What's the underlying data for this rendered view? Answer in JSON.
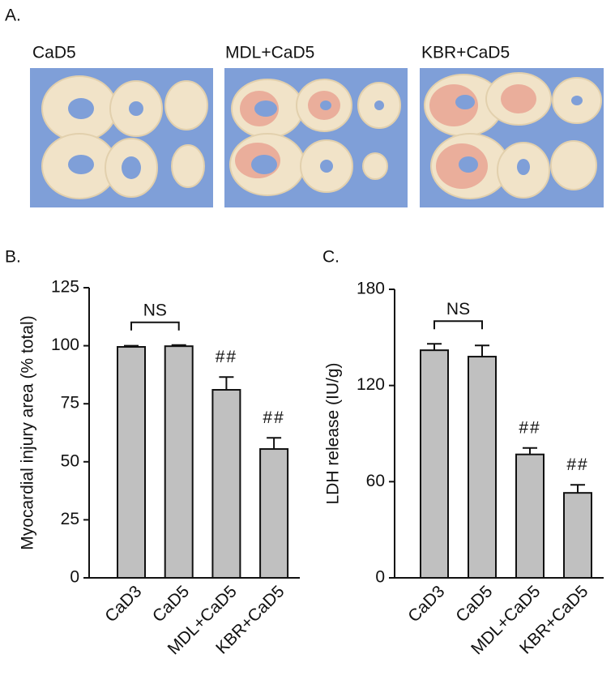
{
  "figure": {
    "panel_labels": [
      "A.",
      "B.",
      "C."
    ],
    "photo_captions": [
      "CaD5",
      "MDL+CaD5",
      "KBR+CaD5"
    ]
  },
  "chart_data": [
    {
      "type": "bar",
      "y_label": "Myocardial injury area (% total)",
      "categories": [
        "CaD3",
        "CaD5",
        "MDL+CaD5",
        "KBR+CaD5"
      ],
      "values": [
        99.5,
        99.8,
        81,
        55.5
      ],
      "errors": [
        0.5,
        0.5,
        5.5,
        4.8
      ],
      "bracket_label": "NS",
      "bar_labels": [
        null,
        null,
        "##",
        "##"
      ],
      "color": "#c0c0c0",
      "ylim": [
        0,
        125
      ],
      "yticks": [
        0,
        25,
        50,
        75,
        100,
        125
      ]
    },
    {
      "type": "bar",
      "y_label": "LDH release (IU/g)",
      "categories": [
        "CaD3",
        "CaD5",
        "MDL+CaD5",
        "KBR+CaD5"
      ],
      "values": [
        142,
        138,
        77,
        53
      ],
      "errors": [
        4,
        7,
        4,
        5
      ],
      "bracket_label": "NS",
      "bar_labels": [
        null,
        null,
        "##",
        "##"
      ],
      "color": "#c0c0c0",
      "ylim": [
        0,
        180
      ],
      "yticks": [
        0,
        60,
        120,
        180
      ]
    }
  ]
}
